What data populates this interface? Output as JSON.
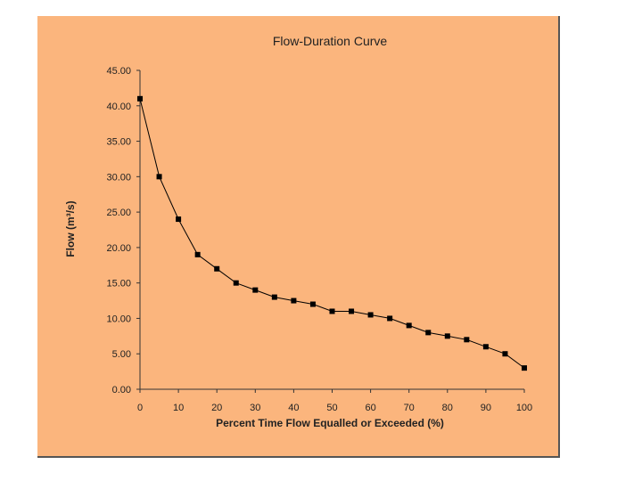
{
  "chart_data": {
    "type": "line",
    "title": "Flow-Duration Curve",
    "xlabel": "Percent Time Flow Equalled or Exceeded (%)",
    "ylabel": "Flow (m³/s)",
    "xlim": [
      0,
      100
    ],
    "ylim": [
      0,
      45
    ],
    "x_ticks": [
      "0",
      "10",
      "20",
      "30",
      "40",
      "50",
      "60",
      "70",
      "80",
      "90",
      "100"
    ],
    "y_ticks": [
      "0.00",
      "5.00",
      "10.00",
      "15.00",
      "20.00",
      "25.00",
      "30.00",
      "35.00",
      "40.00",
      "45.00"
    ],
    "grid": false,
    "marker": "square",
    "series_color": "#000000",
    "background_color": "#fbb57d",
    "x": [
      0,
      5,
      10,
      15,
      20,
      25,
      30,
      35,
      40,
      45,
      50,
      55,
      60,
      65,
      70,
      75,
      80,
      85,
      90,
      95,
      100
    ],
    "y": [
      41,
      30,
      24,
      19,
      17,
      15,
      14,
      13,
      12.5,
      12,
      11,
      11,
      10.5,
      10,
      9,
      8,
      7.5,
      7,
      6,
      5,
      3
    ]
  }
}
